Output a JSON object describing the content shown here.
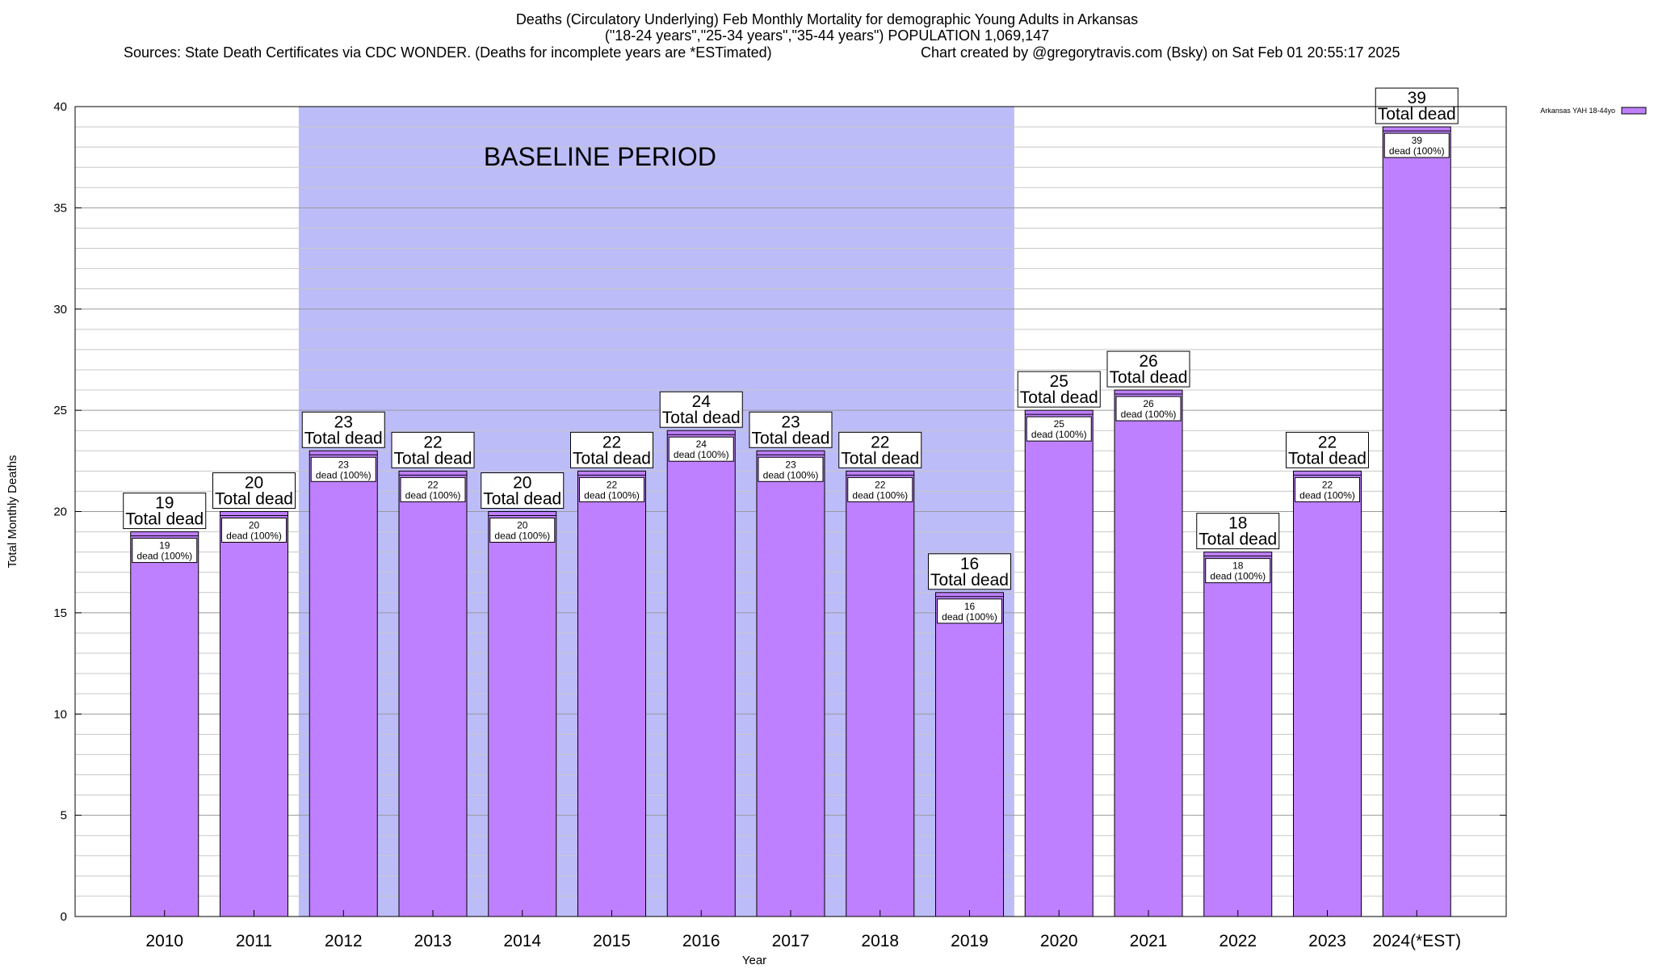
{
  "chart_data": {
    "type": "bar",
    "title_lines": [
      "Deaths (Circulatory Underlying) Feb Monthly Mortality for demographic Young Adults in Arkansas",
      "(\"18-24 years\",\"25-34 years\",\"35-44 years\") POPULATION 1,069,147"
    ],
    "sources_text": "Sources: State Death Certificates via CDC WONDER. (Deaths for incomplete years are *ESTimated)",
    "credit_text": "Chart created by @gregorytravis.com (Bsky) on Sat Feb 01 20:55:17 2025",
    "xlabel": "Year",
    "ylabel": "Total Monthly Deaths",
    "ylim": [
      0,
      40
    ],
    "y_ticks": [
      0,
      5,
      10,
      15,
      20,
      25,
      30,
      35,
      40
    ],
    "y_minor_step": 1,
    "grid": true,
    "legend_position": "top-right",
    "baseline": {
      "label": "BASELINE PERIOD",
      "start": "2012",
      "end": "2019",
      "color": "#bcbcf8"
    },
    "bar_color": "#bf80ff",
    "categories": [
      "2010",
      "2011",
      "2012",
      "2013",
      "2014",
      "2015",
      "2016",
      "2017",
      "2018",
      "2019",
      "2020",
      "2021",
      "2022",
      "2023",
      "2024(*EST)"
    ],
    "series": [
      {
        "name": "Arkansas YAH 18-44yo",
        "values": [
          19,
          20,
          23,
          22,
          20,
          22,
          24,
          23,
          22,
          16,
          25,
          26,
          18,
          22,
          39
        ]
      }
    ],
    "label_total_suffix": "Total dead",
    "label_inner_suffix": "dead (100%)"
  }
}
